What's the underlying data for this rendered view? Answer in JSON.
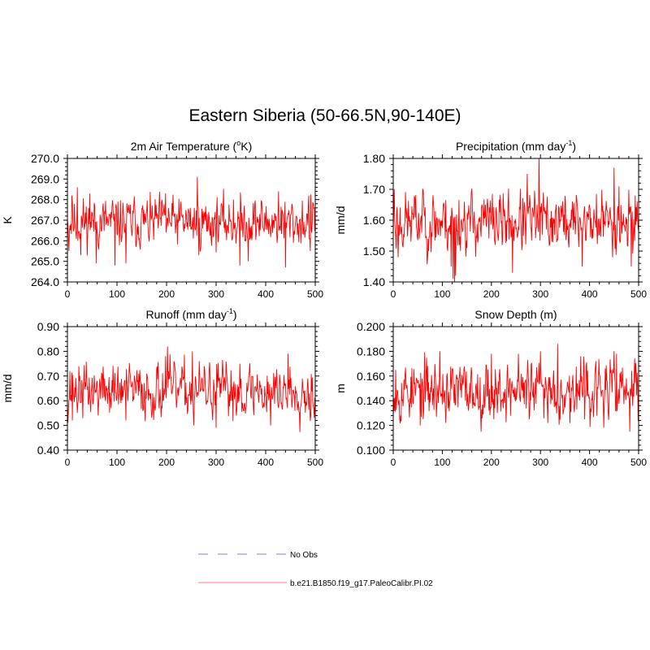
{
  "title": "Eastern Siberia (50-66.5N,90-140E)",
  "colors": {
    "series": "#ff0000",
    "obs": "#9999ee",
    "legend_series": "#ff9999",
    "axis": "#000000"
  },
  "legend": {
    "entries": [
      {
        "label": "No Obs",
        "style": "dashed"
      },
      {
        "label": "b.e21.B1850.f19_g17.PaleoCalibr.PI.02",
        "style": "solid"
      }
    ]
  },
  "chart_data": [
    {
      "type": "line",
      "title": "2m Air Temperature (oK)",
      "title_parts": [
        "2m Air Temperature (",
        "o",
        "K)"
      ],
      "ylabel": "K",
      "xlim": [
        0,
        500
      ],
      "ylim": [
        264,
        270
      ],
      "xticks": [
        0,
        100,
        200,
        300,
        400,
        500
      ],
      "yticks": [
        "264.0",
        "265.0",
        "266.0",
        "267.0",
        "268.0",
        "269.0",
        "270.0"
      ],
      "y_minor_step": 0.2,
      "series": [
        {
          "name": "b.e21.B1850.f19_g17.PaleoCalibr.PI.02",
          "mean": 266.9,
          "amp": 0.55,
          "seed": 11,
          "peaks": [
            [
              0,
              267.0
            ],
            [
              3,
              265.5
            ],
            [
              9,
              268.2
            ],
            [
              20,
              268.6
            ],
            [
              27,
              265.3
            ],
            [
              45,
              268.3
            ],
            [
              58,
              264.9
            ],
            [
              96,
              264.8
            ],
            [
              118,
              264.9
            ],
            [
              198,
              268.3
            ],
            [
              262,
              269.1
            ],
            [
              265,
              265.3
            ],
            [
              335,
              268.0
            ],
            [
              348,
              264.8
            ],
            [
              365,
              265.0
            ],
            [
              426,
              268.4
            ],
            [
              440,
              264.7
            ],
            [
              487,
              268.2
            ],
            [
              490,
              265.5
            ],
            [
              498,
              267.6
            ]
          ]
        }
      ]
    },
    {
      "type": "line",
      "title": "Precipitation (mm day-1)",
      "title_parts": [
        "Precipitation (mm day",
        "-1",
        ")"
      ],
      "ylabel": "mm/d",
      "xlim": [
        0,
        500
      ],
      "ylim": [
        1.4,
        1.8
      ],
      "xticks": [
        0,
        100,
        200,
        300,
        400,
        500
      ],
      "yticks": [
        "1.40",
        "1.50",
        "1.60",
        "1.70",
        "1.80"
      ],
      "y_minor_step": 0.02,
      "series": [
        {
          "name": "b.e21.B1850.f19_g17.PaleoCalibr.PI.02",
          "mean": 1.595,
          "amp": 0.045,
          "seed": 23,
          "peaks": [
            [
              2,
              1.7
            ],
            [
              10,
              1.48
            ],
            [
              60,
              1.7
            ],
            [
              118,
              1.45
            ],
            [
              122,
              1.41
            ],
            [
              125,
              1.4
            ],
            [
              127,
              1.42
            ],
            [
              243,
              1.43
            ],
            [
              273,
              1.75
            ],
            [
              297,
              1.81
            ],
            [
              385,
              1.45
            ],
            [
              450,
              1.77
            ],
            [
              460,
              1.71
            ],
            [
              485,
              1.45
            ],
            [
              493,
              1.68
            ]
          ]
        }
      ]
    },
    {
      "type": "line",
      "title": "Runoff (mm day-1)",
      "title_parts": [
        "Runoff (mm day",
        "-1",
        ")"
      ],
      "ylabel": "mm/d",
      "xlim": [
        0,
        500
      ],
      "ylim": [
        0.4,
        0.9
      ],
      "xticks": [
        0,
        100,
        200,
        300,
        400,
        500
      ],
      "yticks": [
        "0.40",
        "0.50",
        "0.60",
        "0.70",
        "0.80",
        "0.90"
      ],
      "y_minor_step": 0.02,
      "series": [
        {
          "name": "b.e21.B1850.f19_g17.PaleoCalibr.PI.02",
          "mean": 0.64,
          "amp": 0.05,
          "seed": 37,
          "peaks": [
            [
              5,
              0.72
            ],
            [
              10,
              0.52
            ],
            [
              75,
              0.69
            ],
            [
              118,
              0.52
            ],
            [
              180,
              0.73
            ],
            [
              198,
              0.78
            ],
            [
              202,
              0.82
            ],
            [
              252,
              0.8
            ],
            [
              255,
              0.5
            ],
            [
              300,
              0.49
            ],
            [
              348,
              0.75
            ],
            [
              410,
              0.5
            ],
            [
              445,
              0.79
            ],
            [
              498,
              0.53
            ]
          ]
        }
      ]
    },
    {
      "type": "line",
      "title": "Snow Depth (m)",
      "title_parts": [
        "Snow Depth (m)",
        "",
        ""
      ],
      "ylabel": "m",
      "xlim": [
        0,
        500
      ],
      "ylim": [
        0.1,
        0.2
      ],
      "xticks": [
        0,
        100,
        200,
        300,
        400,
        500
      ],
      "yticks": [
        "0.100",
        "0.120",
        "0.140",
        "0.160",
        "0.180",
        "0.200"
      ],
      "y_minor_step": 0.004,
      "series": [
        {
          "name": "b.e21.B1850.f19_g17.PaleoCalibr.PI.02",
          "mean": 0.148,
          "amp": 0.011,
          "seed": 53,
          "peaks": [
            [
              5,
              0.165
            ],
            [
              55,
              0.12
            ],
            [
              95,
              0.18
            ],
            [
              200,
              0.178
            ],
            [
              255,
              0.178
            ],
            [
              300,
              0.18
            ],
            [
              335,
              0.186
            ],
            [
              360,
              0.122
            ],
            [
              382,
              0.176
            ],
            [
              455,
              0.178
            ],
            [
              482,
              0.115
            ],
            [
              498,
              0.152
            ]
          ]
        }
      ]
    }
  ]
}
